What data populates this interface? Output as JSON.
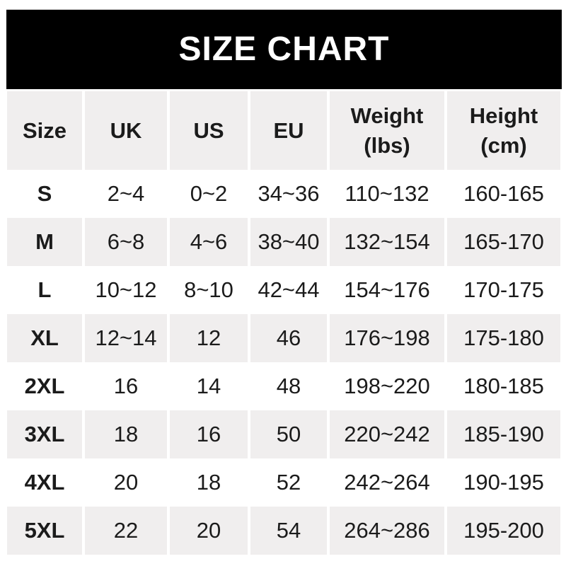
{
  "banner": {
    "title": "SIZE CHART"
  },
  "colors": {
    "banner_bg": "#000000",
    "banner_text": "#ffffff",
    "stripe_bg": "#f0eeee",
    "text": "#1b1b1b",
    "page_bg": "#ffffff"
  },
  "table": {
    "headers": [
      {
        "label": "Size",
        "sub": ""
      },
      {
        "label": "UK",
        "sub": ""
      },
      {
        "label": "US",
        "sub": ""
      },
      {
        "label": "EU",
        "sub": ""
      },
      {
        "label": "Weight",
        "sub": "(lbs)"
      },
      {
        "label": "Height",
        "sub": "(cm)"
      }
    ],
    "rows": [
      {
        "size": "S",
        "uk": "2~4",
        "us": "0~2",
        "eu": "34~36",
        "weight": "110~132",
        "height": "160-165"
      },
      {
        "size": "M",
        "uk": "6~8",
        "us": "4~6",
        "eu": "38~40",
        "weight": "132~154",
        "height": "165-170"
      },
      {
        "size": "L",
        "uk": "10~12",
        "us": "8~10",
        "eu": "42~44",
        "weight": "154~176",
        "height": "170-175"
      },
      {
        "size": "XL",
        "uk": "12~14",
        "us": "12",
        "eu": "46",
        "weight": "176~198",
        "height": "175-180"
      },
      {
        "size": "2XL",
        "uk": "16",
        "us": "14",
        "eu": "48",
        "weight": "198~220",
        "height": "180-185"
      },
      {
        "size": "3XL",
        "uk": "18",
        "us": "16",
        "eu": "50",
        "weight": "220~242",
        "height": "185-190"
      },
      {
        "size": "4XL",
        "uk": "20",
        "us": "18",
        "eu": "52",
        "weight": "242~264",
        "height": "190-195"
      },
      {
        "size": "5XL",
        "uk": "22",
        "us": "20",
        "eu": "54",
        "weight": "264~286",
        "height": "195-200"
      }
    ]
  },
  "chart_data": {
    "type": "table",
    "title": "SIZE CHART",
    "columns": [
      "Size",
      "UK",
      "US",
      "EU",
      "Weight (lbs)",
      "Height (cm)"
    ],
    "rows": [
      [
        "S",
        "2~4",
        "0~2",
        "34~36",
        "110~132",
        "160-165"
      ],
      [
        "M",
        "6~8",
        "4~6",
        "38~40",
        "132~154",
        "165-170"
      ],
      [
        "L",
        "10~12",
        "8~10",
        "42~44",
        "154~176",
        "170-175"
      ],
      [
        "XL",
        "12~14",
        "12",
        "46",
        "176~198",
        "175-180"
      ],
      [
        "2XL",
        "16",
        "14",
        "48",
        "198~220",
        "180-185"
      ],
      [
        "3XL",
        "18",
        "16",
        "50",
        "220~242",
        "185-190"
      ],
      [
        "4XL",
        "20",
        "18",
        "52",
        "242~264",
        "190-195"
      ],
      [
        "5XL",
        "22",
        "20",
        "54",
        "264~286",
        "195-200"
      ]
    ]
  }
}
